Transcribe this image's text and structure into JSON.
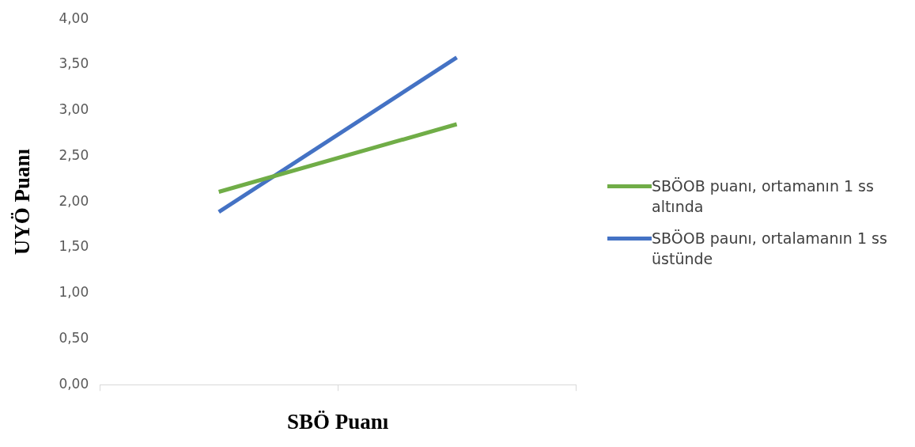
{
  "chart_data": {
    "type": "line",
    "xlabel": "SBÖ Puanı",
    "ylabel": "UYÖ Puanı",
    "categories": [
      null,
      null
    ],
    "series": [
      {
        "name": "SBÖOB puanı, ortamanın 1 ss altında",
        "color": "#70ad47",
        "values": [
          2.11,
          2.85
        ]
      },
      {
        "name": "SBÖOB paunı, ortalamanın 1 ss üstünde",
        "color": "#4472c4",
        "values": [
          1.89,
          3.58
        ]
      }
    ],
    "ylim": [
      0,
      4
    ],
    "yticks": [
      {
        "value": 0,
        "label": "0,00"
      },
      {
        "value": 0.5,
        "label": "0,50"
      },
      {
        "value": 1,
        "label": "1,00"
      },
      {
        "value": 1.5,
        "label": "1,50"
      },
      {
        "value": 2,
        "label": "2,00"
      },
      {
        "value": 2.5,
        "label": "2,50"
      },
      {
        "value": 3,
        "label": "3,00"
      },
      {
        "value": 3.5,
        "label": "3,50"
      },
      {
        "value": 4,
        "label": "4,00"
      }
    ],
    "grid": false,
    "legend": "right",
    "marker": "none",
    "line_style": "solid"
  }
}
